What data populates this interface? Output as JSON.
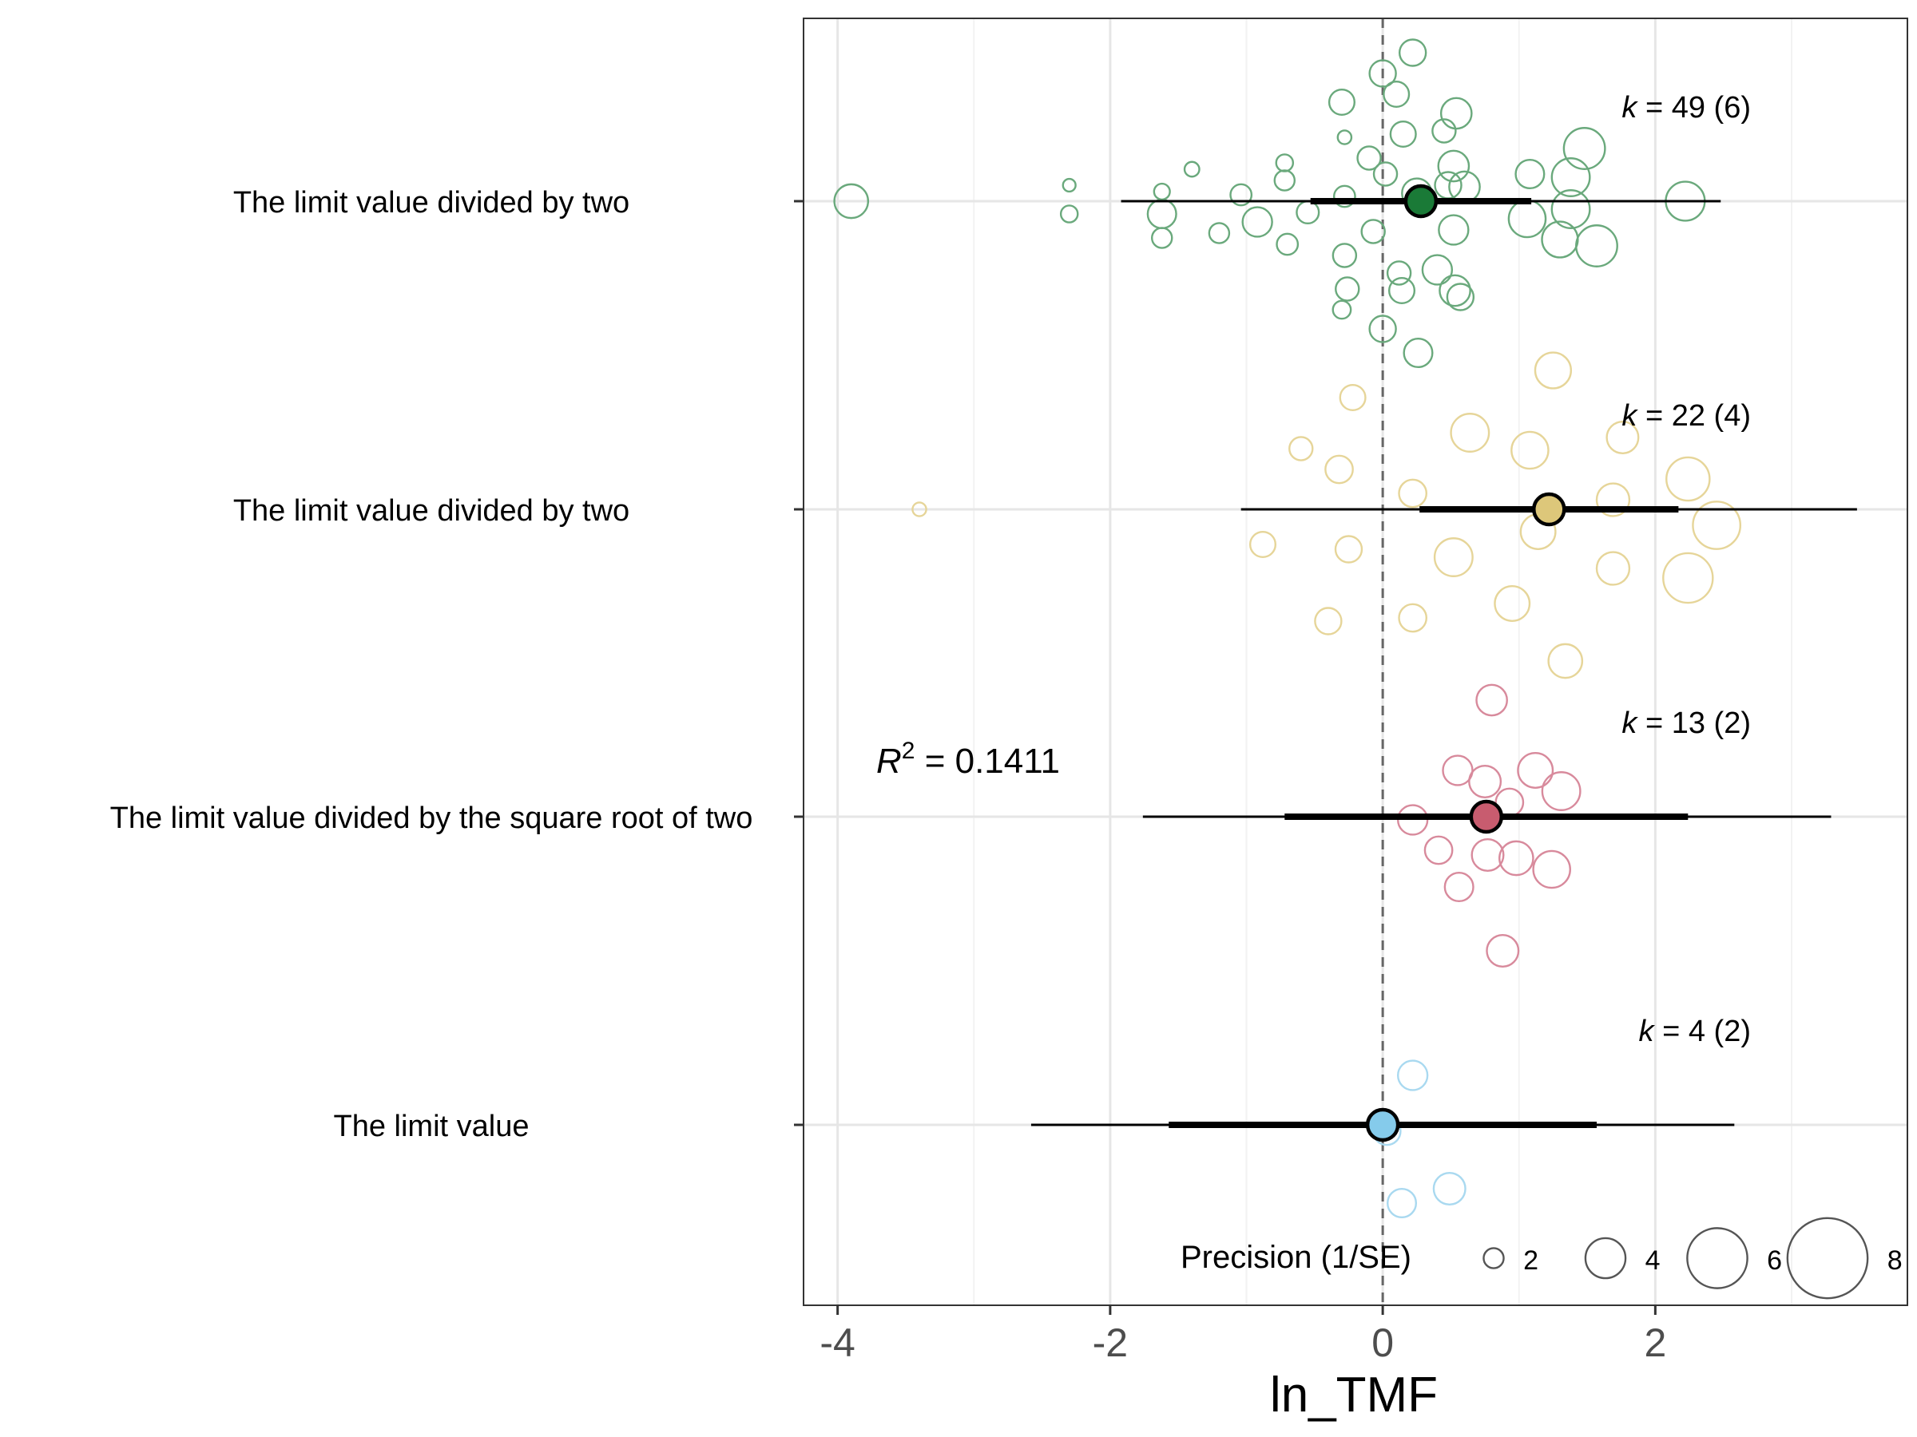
{
  "chart_data": {
    "type": "scatter",
    "subtype": "orchard plot",
    "xlabel": "ln_TMF",
    "ylabel": "",
    "xlim": [
      -4.25,
      3.85
    ],
    "x_ticks": [
      -4,
      -2,
      0,
      2
    ],
    "x_tick_labels": [
      "-4",
      "-2",
      "0",
      "2"
    ],
    "reference_line_x": 0,
    "grid": true,
    "r2_annotation": {
      "label": "R",
      "superscript": "2",
      "value_text": " = 0.1411"
    },
    "legend": {
      "title": "Precision (1/SE)",
      "placement": "bottom-right inside plot",
      "sizes": [
        2,
        4,
        6,
        8
      ],
      "labels": [
        "2",
        "4",
        "6",
        "8"
      ]
    },
    "groups": [
      {
        "label": "The limit value divided by two",
        "color": "#1a7a37",
        "point_color": "#6aa97c",
        "k_label": "k",
        "k_text": " = 49 (6)",
        "estimate": 0.28,
        "ci": [
          -0.53,
          1.09
        ],
        "pi": [
          -1.92,
          2.48
        ],
        "points": [
          [
            -3.9,
            0,
            3.2
          ],
          [
            -2.3,
            0.1,
            1.2
          ],
          [
            -2.3,
            -0.08,
            1.6
          ],
          [
            -1.62,
            0.06,
            1.5
          ],
          [
            -1.62,
            -0.08,
            2.7
          ],
          [
            -1.62,
            -0.23,
            1.9
          ],
          [
            -1.4,
            0.2,
            1.4
          ],
          [
            -1.2,
            -0.2,
            1.9
          ],
          [
            -1.04,
            0.04,
            2.0
          ],
          [
            -0.92,
            -0.13,
            2.8
          ],
          [
            -0.72,
            0.24,
            1.6
          ],
          [
            -0.72,
            0.13,
            1.9
          ],
          [
            -0.7,
            -0.27,
            2.0
          ],
          [
            -0.55,
            -0.07,
            2.1
          ],
          [
            -0.3,
            0.62,
            2.4
          ],
          [
            -0.28,
            0.4,
            1.3
          ],
          [
            -0.28,
            0.03,
            2.0
          ],
          [
            -0.28,
            -0.34,
            2.2
          ],
          [
            -0.26,
            -0.55,
            2.2
          ],
          [
            -0.3,
            -0.68,
            1.7
          ],
          [
            -0.1,
            0.27,
            2.2
          ],
          [
            -0.07,
            -0.19,
            2.2
          ],
          [
            0,
            0.8,
            2.5
          ],
          [
            0.02,
            0.17,
            2.2
          ],
          [
            0.0,
            -0.8,
            2.5
          ],
          [
            0.1,
            0.67,
            2.4
          ],
          [
            0.14,
            -0.56,
            2.4
          ],
          [
            0.15,
            0.42,
            2.4
          ],
          [
            0.22,
            0.93,
            2.5
          ],
          [
            0.25,
            0.05,
            2.8
          ],
          [
            0.26,
            -0.95,
            2.7
          ],
          [
            0.4,
            -0.43,
            2.8
          ],
          [
            0.45,
            0.44,
            2.2
          ],
          [
            0.48,
            0.1,
            2.5
          ],
          [
            0.52,
            0.22,
            2.9
          ],
          [
            0.52,
            -0.18,
            2.8
          ],
          [
            0.53,
            -0.56,
            2.9
          ],
          [
            0.54,
            0.55,
            2.9
          ],
          [
            0.6,
            0.09,
            2.9
          ],
          [
            0.57,
            -0.6,
            2.5
          ],
          [
            1.08,
            0.17,
            2.7
          ],
          [
            1.06,
            -0.11,
            3.5
          ],
          [
            1.3,
            -0.24,
            3.4
          ],
          [
            1.38,
            0.15,
            3.6
          ],
          [
            1.38,
            -0.05,
            3.6
          ],
          [
            1.48,
            0.33,
            3.9
          ],
          [
            1.57,
            -0.28,
            3.9
          ],
          [
            2.22,
            0.0,
            3.7
          ],
          [
            0.12,
            -0.45,
            2.2
          ]
        ]
      },
      {
        "label": "The limit value divided by two",
        "color": "#ddc77a",
        "point_color": "#e6d599",
        "k_label": "k",
        "k_text": " = 22 (4)",
        "estimate": 1.22,
        "ci": [
          0.27,
          2.17
        ],
        "pi": [
          -1.04,
          3.48
        ],
        "points": [
          [
            -3.4,
            0,
            1.3
          ],
          [
            -0.88,
            -0.22,
            2.4
          ],
          [
            -0.6,
            0.38,
            2.2
          ],
          [
            -0.4,
            -0.7,
            2.5
          ],
          [
            -0.32,
            0.25,
            2.6
          ],
          [
            -0.25,
            -0.25,
            2.5
          ],
          [
            -0.22,
            0.7,
            2.4
          ],
          [
            0.22,
            0.1,
            2.6
          ],
          [
            0.22,
            -0.68,
            2.6
          ],
          [
            0.52,
            -0.3,
            3.6
          ],
          [
            0.64,
            0.48,
            3.6
          ],
          [
            0.95,
            -0.59,
            3.3
          ],
          [
            1.08,
            0.37,
            3.5
          ],
          [
            1.14,
            -0.14,
            3.3
          ],
          [
            1.25,
            0.87,
            3.4
          ],
          [
            1.34,
            -0.95,
            3.2
          ],
          [
            1.69,
            -0.37,
            3.1
          ],
          [
            1.69,
            0.06,
            3.1
          ],
          [
            1.76,
            0.45,
            3.0
          ],
          [
            2.24,
            0.19,
            4.1
          ],
          [
            2.24,
            -0.43,
            4.7
          ],
          [
            2.45,
            -0.1,
            4.5
          ]
        ]
      },
      {
        "label": "The limit value divided by the square root of two",
        "color": "#c85c6f",
        "point_color": "#d88a9c",
        "k_label": "k",
        "k_text": " = 13 (2)",
        "estimate": 0.76,
        "ci": [
          -0.72,
          2.24
        ],
        "pi": [
          -1.76,
          3.29
        ],
        "points": [
          [
            0.8,
            0.73,
            2.9
          ],
          [
            0.22,
            -0.02,
            2.8
          ],
          [
            0.55,
            0.29,
            2.8
          ],
          [
            0.41,
            -0.21,
            2.6
          ],
          [
            0.56,
            -0.44,
            2.7
          ],
          [
            0.75,
            0.22,
            3.0
          ],
          [
            0.93,
            0.09,
            2.6
          ],
          [
            0.77,
            -0.24,
            3.0
          ],
          [
            0.98,
            -0.26,
            3.2
          ],
          [
            1.12,
            0.29,
            3.3
          ],
          [
            1.24,
            -0.33,
            3.5
          ],
          [
            1.31,
            0.16,
            3.6
          ],
          [
            0.88,
            -0.84,
            3.0
          ]
        ]
      },
      {
        "label": "The limit value",
        "color": "#85cbeb",
        "point_color": "#a9d9f0",
        "k_label": "k",
        "k_text": " = 4 (2)",
        "estimate": 0.0,
        "ci": [
          -1.57,
          1.57
        ],
        "pi": [
          -2.58,
          2.58
        ],
        "points": [
          [
            0.22,
            0.31,
            2.8
          ],
          [
            0.49,
            -0.4,
            3.0
          ],
          [
            0.14,
            -0.49,
            2.7
          ],
          [
            0.03,
            -0.04,
            2.6
          ]
        ]
      }
    ]
  }
}
